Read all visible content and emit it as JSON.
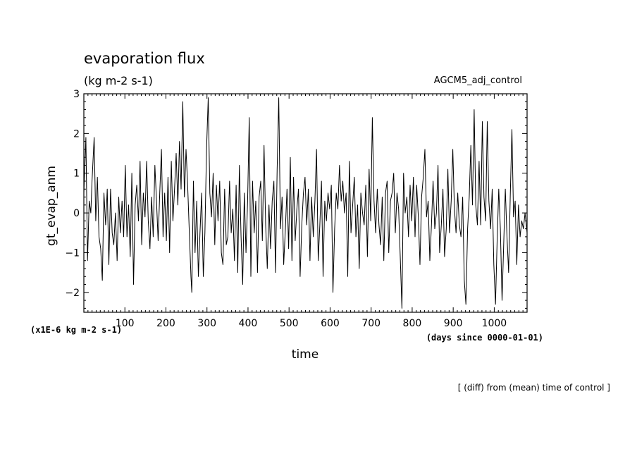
{
  "chart_data": {
    "type": "line",
    "title": "evaporation flux",
    "subtitle": "(kg m-2 s-1)",
    "dataset_label": "AGCM5_adj_control",
    "ylabel": "gt_evap_anm",
    "xlabel": "time",
    "y_scale_note": "(x1E-6 kg m-2 s-1)",
    "x_units_note": "(days since 0000-01-01)",
    "footnote": "[ (diff) from (mean) time of control ]",
    "xlim": [
      0,
      1080
    ],
    "ylim": [
      -2.5,
      3
    ],
    "x_ticks": [
      100,
      200,
      300,
      400,
      500,
      600,
      700,
      800,
      900,
      1000
    ],
    "x_tick_labels": [
      "100",
      "200",
      "300",
      "400",
      "500",
      "600",
      "700",
      "800",
      "900",
      "1000"
    ],
    "y_ticks": [
      -2,
      -1,
      0,
      1,
      2,
      3
    ],
    "y_tick_labels": [
      "−2",
      "−1",
      "0",
      "1",
      "2",
      "3"
    ],
    "grid": false,
    "series": [
      {
        "points": [
          [
            0,
            0.5
          ],
          [
            5,
            1.9
          ],
          [
            9,
            -1.2
          ],
          [
            13,
            0.3
          ],
          [
            17,
            0.0
          ],
          [
            20,
            0.8
          ],
          [
            25,
            1.9
          ],
          [
            29,
            -0.2
          ],
          [
            33,
            0.9
          ],
          [
            37,
            -0.6
          ],
          [
            41,
            -0.9
          ],
          [
            45,
            -1.7
          ],
          [
            49,
            0.5
          ],
          [
            53,
            -0.3
          ],
          [
            57,
            0.6
          ],
          [
            61,
            -1.3
          ],
          [
            65,
            0.6
          ],
          [
            69,
            -0.5
          ],
          [
            73,
            -0.8
          ],
          [
            77,
            0.0
          ],
          [
            81,
            -1.2
          ],
          [
            85,
            0.4
          ],
          [
            89,
            -0.5
          ],
          [
            93,
            0.3
          ],
          [
            97,
            -0.6
          ],
          [
            101,
            1.2
          ],
          [
            105,
            -0.6
          ],
          [
            109,
            0.2
          ],
          [
            113,
            -1.1
          ],
          [
            117,
            1.0
          ],
          [
            121,
            -1.8
          ],
          [
            125,
            0.2
          ],
          [
            129,
            0.7
          ],
          [
            133,
            -0.2
          ],
          [
            137,
            1.3
          ],
          [
            141,
            -0.8
          ],
          [
            145,
            0.5
          ],
          [
            149,
            -0.1
          ],
          [
            153,
            1.3
          ],
          [
            157,
            -0.2
          ],
          [
            161,
            -0.9
          ],
          [
            165,
            0.4
          ],
          [
            169,
            -0.6
          ],
          [
            173,
            1.2
          ],
          [
            177,
            0.3
          ],
          [
            181,
            -0.7
          ],
          [
            185,
            0.5
          ],
          [
            189,
            1.6
          ],
          [
            193,
            -0.6
          ],
          [
            197,
            0.5
          ],
          [
            201,
            -0.7
          ],
          [
            205,
            0.9
          ],
          [
            209,
            -1.0
          ],
          [
            213,
            1.3
          ],
          [
            217,
            -0.2
          ],
          [
            221,
            0.6
          ],
          [
            225,
            1.5
          ],
          [
            229,
            0.2
          ],
          [
            233,
            1.8
          ],
          [
            237,
            0.6
          ],
          [
            241,
            2.8
          ],
          [
            245,
            0.4
          ],
          [
            249,
            1.6
          ],
          [
            253,
            0.7
          ],
          [
            257,
            -0.5
          ],
          [
            261,
            -1.6
          ],
          [
            263,
            -2.0
          ],
          [
            267,
            0.8
          ],
          [
            271,
            -1.0
          ],
          [
            275,
            0.3
          ],
          [
            279,
            -1.6
          ],
          [
            283,
            -0.5
          ],
          [
            287,
            0.5
          ],
          [
            291,
            -1.6
          ],
          [
            295,
            -0.5
          ],
          [
            299,
            1.6
          ],
          [
            303,
            2.9
          ],
          [
            307,
            0.5
          ],
          [
            311,
            -0.1
          ],
          [
            315,
            1.0
          ],
          [
            319,
            -0.8
          ],
          [
            323,
            0.7
          ],
          [
            327,
            -0.2
          ],
          [
            331,
            0.8
          ],
          [
            335,
            -1.0
          ],
          [
            339,
            -1.3
          ],
          [
            343,
            0.6
          ],
          [
            347,
            -0.8
          ],
          [
            351,
            -0.6
          ],
          [
            355,
            0.8
          ],
          [
            359,
            -0.5
          ],
          [
            363,
            0.1
          ],
          [
            367,
            -1.2
          ],
          [
            371,
            0.7
          ],
          [
            375,
            -1.5
          ],
          [
            379,
            1.2
          ],
          [
            383,
            -0.6
          ],
          [
            387,
            -1.8
          ],
          [
            391,
            0.5
          ],
          [
            395,
            -1.0
          ],
          [
            399,
            0.3
          ],
          [
            403,
            2.4
          ],
          [
            407,
            -1.6
          ],
          [
            411,
            0.8
          ],
          [
            415,
            -0.5
          ],
          [
            419,
            0.3
          ],
          [
            423,
            -1.5
          ],
          [
            427,
            0.4
          ],
          [
            431,
            0.8
          ],
          [
            435,
            -0.7
          ],
          [
            439,
            1.7
          ],
          [
            443,
            -0.3
          ],
          [
            447,
            -1.4
          ],
          [
            451,
            0.2
          ],
          [
            455,
            -0.9
          ],
          [
            459,
            0.3
          ],
          [
            463,
            0.8
          ],
          [
            467,
            -1.5
          ],
          [
            471,
            1.1
          ],
          [
            475,
            2.9
          ],
          [
            479,
            -0.4
          ],
          [
            483,
            0.4
          ],
          [
            487,
            -1.3
          ],
          [
            491,
            -0.4
          ],
          [
            495,
            0.6
          ],
          [
            499,
            -0.9
          ],
          [
            503,
            1.4
          ],
          [
            507,
            -1.2
          ],
          [
            511,
            0.9
          ],
          [
            515,
            -0.7
          ],
          [
            519,
            0.1
          ],
          [
            523,
            0.6
          ],
          [
            527,
            -1.6
          ],
          [
            531,
            -0.3
          ],
          [
            535,
            0.5
          ],
          [
            539,
            0.9
          ],
          [
            543,
            -0.3
          ],
          [
            547,
            0.6
          ],
          [
            551,
            -1.2
          ],
          [
            555,
            0.4
          ],
          [
            559,
            -0.6
          ],
          [
            563,
            0.3
          ],
          [
            567,
            1.6
          ],
          [
            571,
            -1.2
          ],
          [
            575,
            -0.3
          ],
          [
            579,
            0.8
          ],
          [
            583,
            -1.6
          ],
          [
            587,
            0.3
          ],
          [
            591,
            -0.2
          ],
          [
            595,
            0.5
          ],
          [
            599,
            0.1
          ],
          [
            603,
            0.7
          ],
          [
            607,
            -2.0
          ],
          [
            611,
            -0.4
          ],
          [
            615,
            0.5
          ],
          [
            619,
            0.1
          ],
          [
            623,
            1.2
          ],
          [
            627,
            0.3
          ],
          [
            631,
            0.8
          ],
          [
            635,
            0.0
          ],
          [
            639,
            0.5
          ],
          [
            643,
            -1.6
          ],
          [
            647,
            1.3
          ],
          [
            651,
            -0.5
          ],
          [
            655,
            0.2
          ],
          [
            659,
            0.9
          ],
          [
            663,
            -0.6
          ],
          [
            667,
            0.2
          ],
          [
            671,
            -1.4
          ],
          [
            675,
            0.5
          ],
          [
            679,
            0.0
          ],
          [
            683,
            -0.3
          ],
          [
            687,
            0.7
          ],
          [
            691,
            -1.1
          ],
          [
            695,
            1.1
          ],
          [
            699,
            -0.2
          ],
          [
            703,
            2.4
          ],
          [
            707,
            0.3
          ],
          [
            711,
            -0.5
          ],
          [
            715,
            0.6
          ],
          [
            719,
            -0.3
          ],
          [
            723,
            -0.8
          ],
          [
            727,
            0.4
          ],
          [
            731,
            -1.2
          ],
          [
            735,
            0.5
          ],
          [
            739,
            0.8
          ],
          [
            743,
            -1.0
          ],
          [
            747,
            0.3
          ],
          [
            751,
            0.5
          ],
          [
            755,
            1.0
          ],
          [
            759,
            -0.5
          ],
          [
            763,
            0.5
          ],
          [
            767,
            0.1
          ],
          [
            771,
            -1.1
          ],
          [
            775,
            -2.4
          ],
          [
            779,
            1.0
          ],
          [
            783,
            0.0
          ],
          [
            787,
            0.4
          ],
          [
            791,
            -0.6
          ],
          [
            795,
            0.7
          ],
          [
            799,
            -0.2
          ],
          [
            803,
            0.9
          ],
          [
            807,
            -0.6
          ],
          [
            811,
            0.7
          ],
          [
            815,
            -0.1
          ],
          [
            819,
            -1.3
          ],
          [
            823,
            0.4
          ],
          [
            827,
            0.9
          ],
          [
            831,
            1.6
          ],
          [
            835,
            -0.1
          ],
          [
            839,
            0.3
          ],
          [
            843,
            -1.2
          ],
          [
            847,
            -0.3
          ],
          [
            851,
            0.8
          ],
          [
            855,
            -0.4
          ],
          [
            859,
            0.0
          ],
          [
            863,
            1.2
          ],
          [
            867,
            -1.0
          ],
          [
            871,
            -0.3
          ],
          [
            875,
            0.6
          ],
          [
            879,
            -1.1
          ],
          [
            883,
            -0.4
          ],
          [
            887,
            1.1
          ],
          [
            891,
            -0.5
          ],
          [
            895,
            0.3
          ],
          [
            899,
            1.6
          ],
          [
            903,
            0.1
          ],
          [
            907,
            -0.5
          ],
          [
            911,
            0.5
          ],
          [
            915,
            -0.3
          ],
          [
            919,
            -0.6
          ],
          [
            923,
            0.4
          ],
          [
            927,
            -1.7
          ],
          [
            931,
            -2.3
          ],
          [
            935,
            -0.4
          ],
          [
            939,
            0.4
          ],
          [
            943,
            1.7
          ],
          [
            947,
            0.2
          ],
          [
            951,
            2.6
          ],
          [
            955,
            0.2
          ],
          [
            959,
            -0.3
          ],
          [
            963,
            1.3
          ],
          [
            967,
            -0.3
          ],
          [
            971,
            2.3
          ],
          [
            975,
            0.4
          ],
          [
            979,
            -0.2
          ],
          [
            983,
            2.3
          ],
          [
            987,
            0.3
          ],
          [
            991,
            -0.4
          ],
          [
            995,
            0.6
          ],
          [
            999,
            -1.3
          ],
          [
            1003,
            -2.3
          ],
          [
            1007,
            -0.7
          ],
          [
            1011,
            0.6
          ],
          [
            1015,
            -0.4
          ],
          [
            1019,
            -2.2
          ],
          [
            1023,
            -0.8
          ],
          [
            1027,
            0.6
          ],
          [
            1031,
            -0.6
          ],
          [
            1035,
            -1.5
          ],
          [
            1039,
            0.4
          ],
          [
            1043,
            2.1
          ],
          [
            1047,
            -0.1
          ],
          [
            1051,
            0.3
          ],
          [
            1055,
            -1.3
          ],
          [
            1059,
            0.2
          ],
          [
            1063,
            -0.6
          ],
          [
            1067,
            -0.2
          ],
          [
            1071,
            -0.4
          ],
          [
            1075,
            0.0
          ],
          [
            1080,
            -0.5
          ]
        ]
      }
    ]
  }
}
